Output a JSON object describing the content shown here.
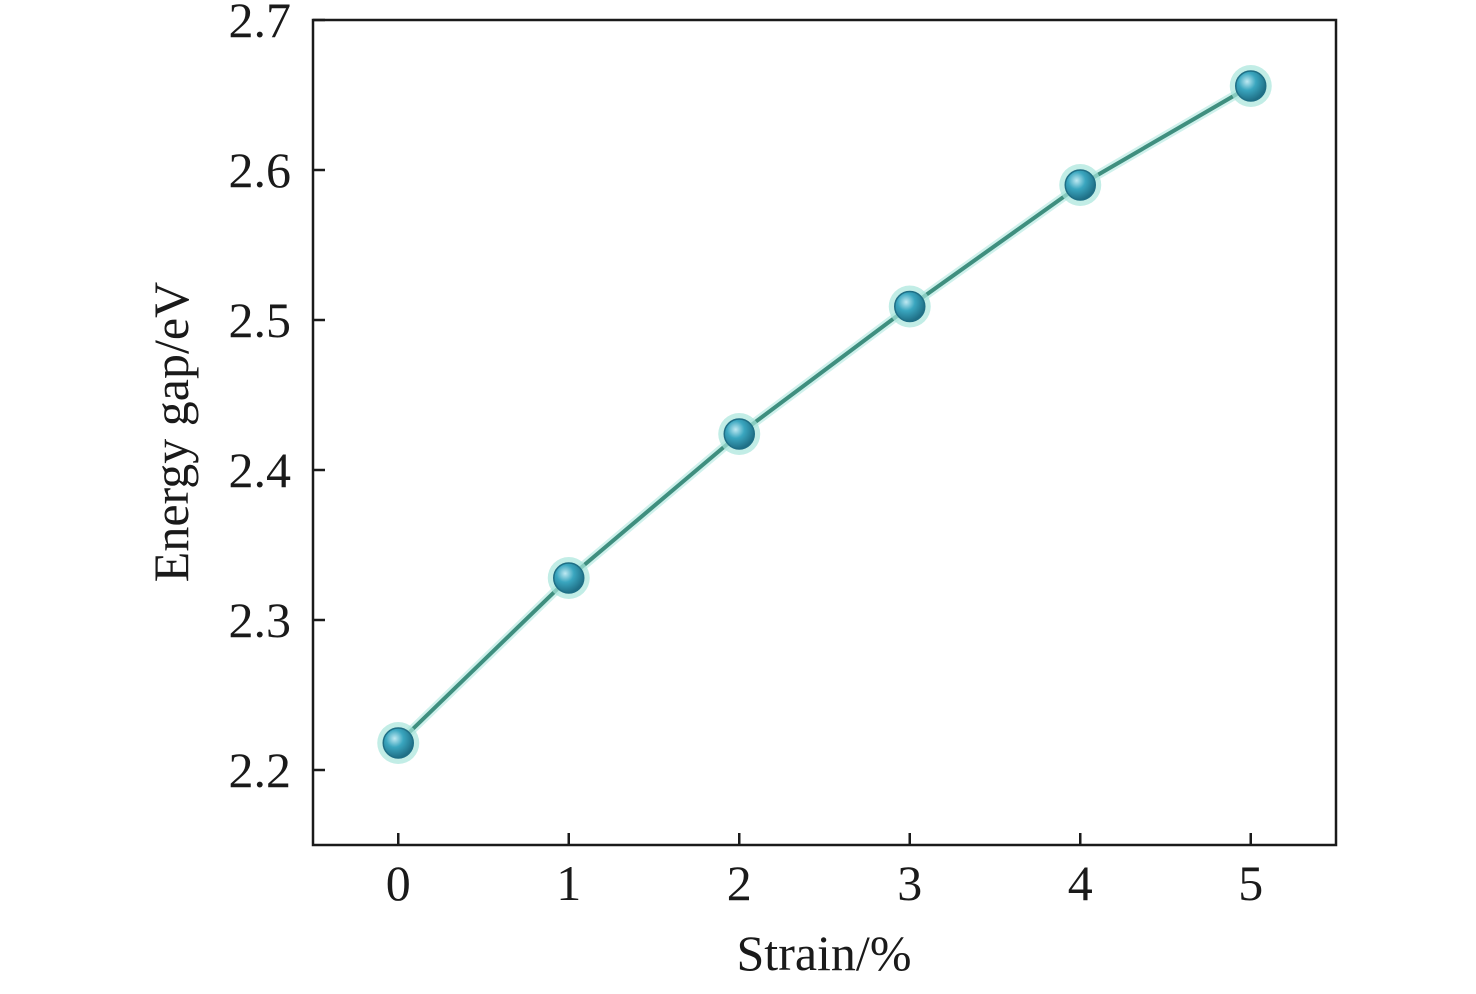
{
  "chart_data": {
    "type": "line",
    "xlabel": "Strain/%",
    "ylabel": "Energy gap/eV",
    "x": [
      0,
      1,
      2,
      3,
      4,
      5
    ],
    "series": [
      {
        "values": [
          2.218,
          2.328,
          2.424,
          2.509,
          2.59,
          2.656
        ]
      }
    ],
    "xlim": [
      -0.5,
      5.5
    ],
    "ylim": [
      2.15,
      2.7
    ],
    "xticks": [
      0,
      1,
      2,
      3,
      4,
      5
    ],
    "xtick_labels": [
      "0",
      "1",
      "2",
      "3",
      "4",
      "5"
    ],
    "yticks": [
      2.2,
      2.3,
      2.4,
      2.5,
      2.6,
      2.7
    ],
    "ytick_labels": [
      "2.2",
      "2.3",
      "2.4",
      "2.5",
      "2.6",
      "2.7"
    ],
    "grid": false,
    "legend": false,
    "colors": {
      "line": "#3f8f7f",
      "marker": "#2f8fa6",
      "marker_highlight": "#8fd3e6",
      "marker_glow": "#a8e6dc",
      "axis": "#1a1a1a"
    }
  }
}
